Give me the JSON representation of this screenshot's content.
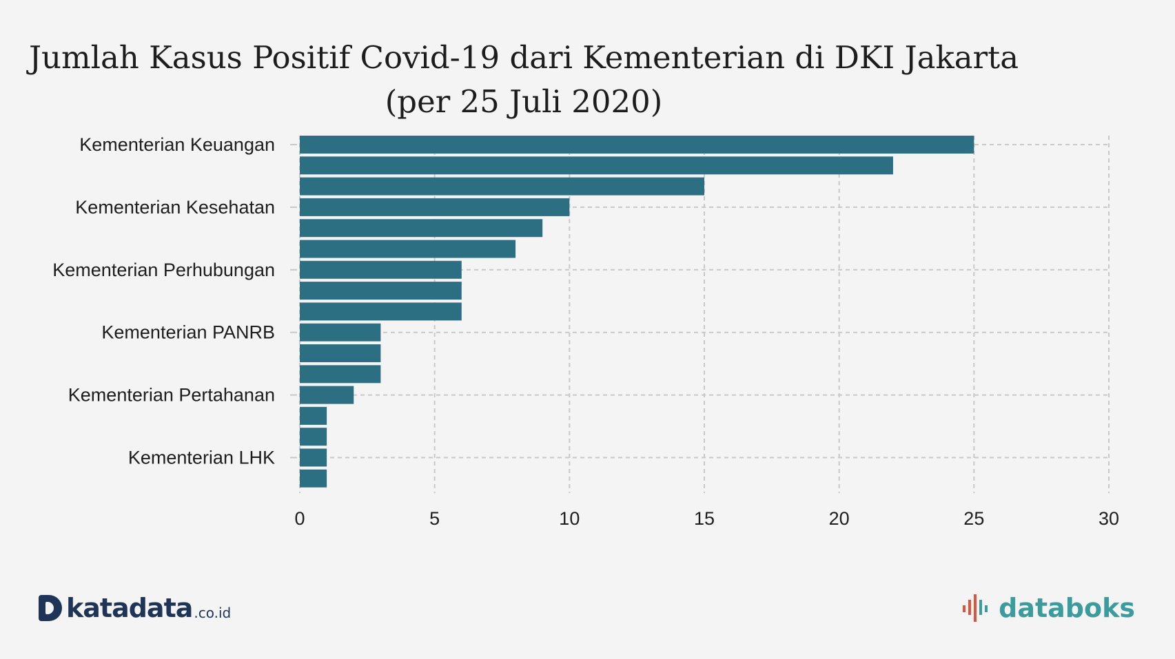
{
  "title_line1": "Jumlah Kasus Positif Covid-19 dari Kementerian di DKI Jakarta",
  "title_line2": "(per 25 Juli 2020)",
  "colors": {
    "bar": "#2c6e82",
    "grid": "#c8c8c8",
    "background": "#f4f4f4"
  },
  "chart_data": {
    "type": "bar",
    "orientation": "horizontal",
    "title": "Jumlah Kasus Positif Covid-19 dari Kementerian di DKI Jakarta (per 25 Juli 2020)",
    "categories": [
      "Kementerian Keuangan",
      "",
      "",
      "Kementerian Kesehatan",
      "",
      "",
      "Kementerian Perhubungan",
      "",
      "",
      "Kementerian PANRB",
      "",
      "",
      "Kementerian Pertahanan",
      "",
      "",
      "Kementerian LHK",
      ""
    ],
    "values": [
      25,
      22,
      15,
      10,
      9,
      8,
      6,
      6,
      6,
      3,
      3,
      3,
      2,
      1,
      1,
      1,
      1
    ],
    "xlim": [
      0,
      30
    ],
    "xticks": [
      "0",
      "5",
      "10",
      "15",
      "20",
      "25",
      "30"
    ],
    "grid": true
  },
  "footer": {
    "left_logo_text": "katadata",
    "left_logo_suffix": ".co.id",
    "right_logo_text": "databoks"
  }
}
